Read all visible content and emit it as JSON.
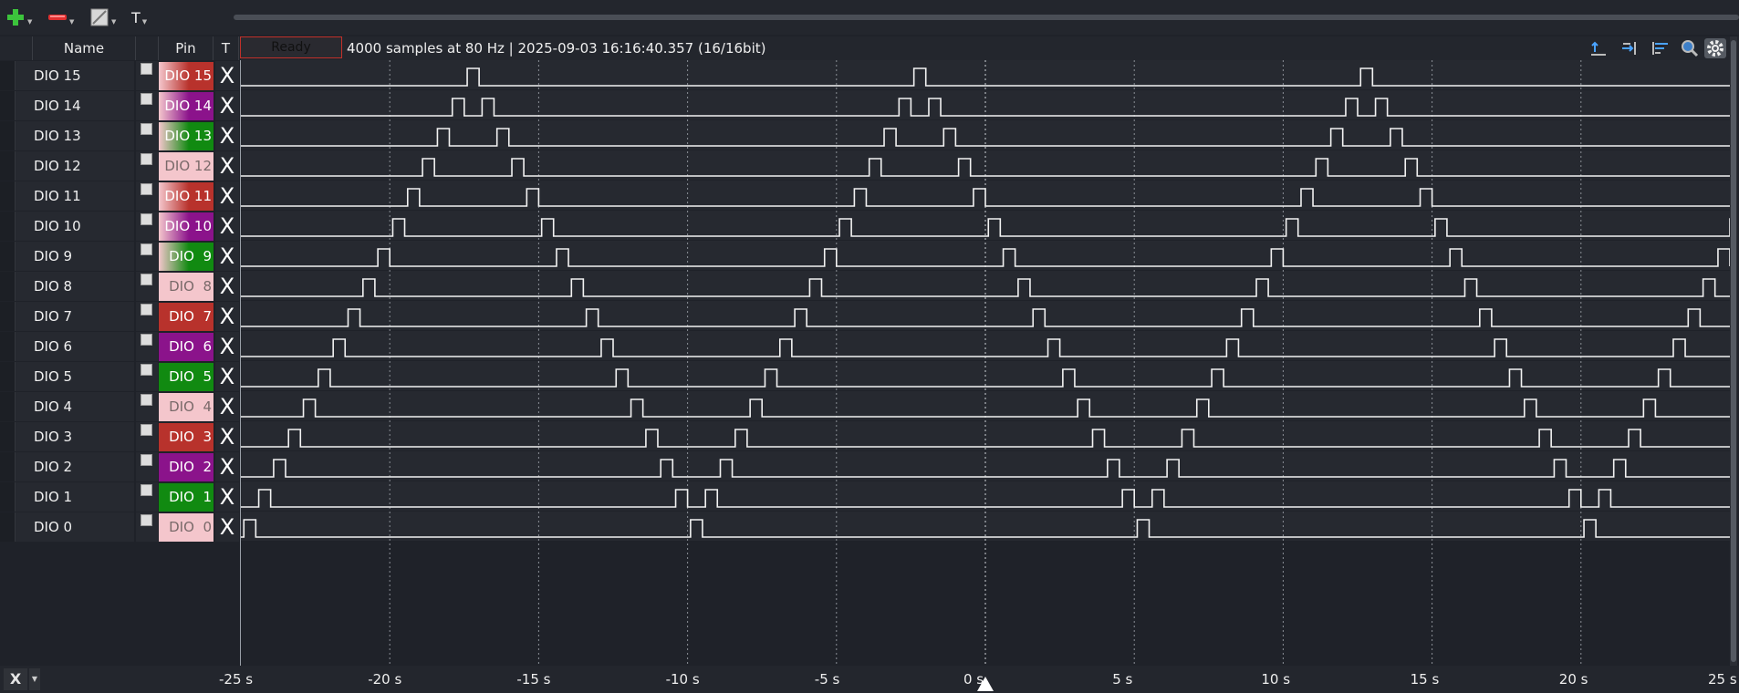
{
  "toolbar": {
    "buttons": [
      {
        "name": "add-channel-button",
        "icon": "plus-icon"
      },
      {
        "name": "remove-channel-button",
        "icon": "minus-icon"
      },
      {
        "name": "edit-channel-button",
        "icon": "edit-icon"
      },
      {
        "name": "text-tool-button",
        "icon": "text-icon",
        "label": "T"
      }
    ]
  },
  "header": {
    "name_col": "Name",
    "pin_col": "Pin",
    "trigger_col": "T",
    "status": "Ready",
    "capture_info": "4000 samples at 80 Hz | 2025-09-03 16:16:40.357 (16/16bit)"
  },
  "channels": [
    {
      "name": "DIO 15",
      "pin": "DIO 15",
      "color": "#b8322c",
      "gradient": true
    },
    {
      "name": "DIO 14",
      "pin": "DIO 14",
      "color": "#8b138b",
      "gradient": true
    },
    {
      "name": "DIO 13",
      "pin": "DIO 13",
      "color": "#118a11",
      "gradient": true
    },
    {
      "name": "DIO 12",
      "pin": "DIO 12",
      "color": "#f4c6cc",
      "gradient": false
    },
    {
      "name": "DIO 11",
      "pin": "DIO 11",
      "color": "#b8322c",
      "gradient": true
    },
    {
      "name": "DIO 10",
      "pin": "DIO 10",
      "color": "#8b138b",
      "gradient": true
    },
    {
      "name": "DIO 9",
      "pin": "DIO  9",
      "color": "#118a11",
      "gradient": true
    },
    {
      "name": "DIO 8",
      "pin": "DIO  8",
      "color": "#f4c6cc",
      "gradient": false
    },
    {
      "name": "DIO 7",
      "pin": "DIO  7",
      "color": "#b8322c",
      "gradient": false
    },
    {
      "name": "DIO 6",
      "pin": "DIO  6",
      "color": "#8b138b",
      "gradient": false
    },
    {
      "name": "DIO 5",
      "pin": "DIO  5",
      "color": "#118a11",
      "gradient": false
    },
    {
      "name": "DIO 4",
      "pin": "DIO  4",
      "color": "#f4c6cc",
      "gradient": false
    },
    {
      "name": "DIO 3",
      "pin": "DIO  3",
      "color": "#b8322c",
      "gradient": false
    },
    {
      "name": "DIO 2",
      "pin": "DIO  2",
      "color": "#8b138b",
      "gradient": false
    },
    {
      "name": "DIO 1",
      "pin": "DIO  1",
      "color": "#118a11",
      "gradient": false
    },
    {
      "name": "DIO 0",
      "pin": "DIO  0",
      "color": "#f4c6cc",
      "gradient": false
    }
  ],
  "trigger_symbol": "X",
  "waveforms": {
    "comment_units": "pulse start/end times in seconds",
    "t_min": -25,
    "t_max": 25,
    "pulses": [
      [
        [
          -17.4,
          -17.0
        ],
        [
          -2.4,
          -2.0
        ],
        [
          12.6,
          13.0
        ]
      ],
      [
        [
          -17.9,
          -17.5
        ],
        [
          -16.9,
          -16.5
        ],
        [
          -2.9,
          -2.5
        ],
        [
          -1.9,
          -1.5
        ],
        [
          12.1,
          12.5
        ],
        [
          13.1,
          13.5
        ]
      ],
      [
        [
          -18.4,
          -18.0
        ],
        [
          -16.4,
          -16.0
        ],
        [
          -3.4,
          -3.0
        ],
        [
          -1.4,
          -1.0
        ],
        [
          11.6,
          12.0
        ],
        [
          13.6,
          14.0
        ]
      ],
      [
        [
          -18.9,
          -18.5
        ],
        [
          -15.9,
          -15.5
        ],
        [
          -3.9,
          -3.5
        ],
        [
          -0.9,
          -0.5
        ],
        [
          11.1,
          11.5
        ],
        [
          14.1,
          14.5
        ]
      ],
      [
        [
          -19.4,
          -19.0
        ],
        [
          -15.4,
          -15.0
        ],
        [
          -4.4,
          -4.0
        ],
        [
          -0.4,
          0.0
        ],
        [
          10.6,
          11.0
        ],
        [
          14.6,
          15.0
        ]
      ],
      [
        [
          -19.9,
          -19.5
        ],
        [
          -14.9,
          -14.5
        ],
        [
          -4.9,
          -4.5
        ],
        [
          0.1,
          0.5
        ],
        [
          10.1,
          10.5
        ],
        [
          15.1,
          15.5
        ],
        [
          25.1,
          25.5
        ]
      ],
      [
        [
          -20.4,
          -20.0
        ],
        [
          -14.4,
          -14.0
        ],
        [
          -5.4,
          -5.0
        ],
        [
          0.6,
          1.0
        ],
        [
          9.6,
          10.0
        ],
        [
          15.6,
          16.0
        ],
        [
          24.6,
          25.0
        ]
      ],
      [
        [
          -20.9,
          -20.5
        ],
        [
          -13.9,
          -13.5
        ],
        [
          -5.9,
          -5.5
        ],
        [
          1.1,
          1.5
        ],
        [
          9.1,
          9.5
        ],
        [
          16.1,
          16.5
        ],
        [
          24.1,
          24.5
        ]
      ],
      [
        [
          -21.4,
          -21.0
        ],
        [
          -13.4,
          -13.0
        ],
        [
          -6.4,
          -6.0
        ],
        [
          1.6,
          2.0
        ],
        [
          8.6,
          9.0
        ],
        [
          16.6,
          17.0
        ],
        [
          23.6,
          24.0
        ]
      ],
      [
        [
          -21.9,
          -21.5
        ],
        [
          -12.9,
          -12.5
        ],
        [
          -6.9,
          -6.5
        ],
        [
          2.1,
          2.5
        ],
        [
          8.1,
          8.5
        ],
        [
          17.1,
          17.5
        ],
        [
          23.1,
          23.5
        ]
      ],
      [
        [
          -22.4,
          -22.0
        ],
        [
          -12.4,
          -12.0
        ],
        [
          -7.4,
          -7.0
        ],
        [
          2.6,
          3.0
        ],
        [
          7.6,
          8.0
        ],
        [
          17.6,
          18.0
        ],
        [
          22.6,
          23.0
        ]
      ],
      [
        [
          -22.9,
          -22.5
        ],
        [
          -11.9,
          -11.5
        ],
        [
          -7.9,
          -7.5
        ],
        [
          3.1,
          3.5
        ],
        [
          7.1,
          7.5
        ],
        [
          18.1,
          18.5
        ],
        [
          22.1,
          22.5
        ]
      ],
      [
        [
          -23.4,
          -23.0
        ],
        [
          -11.4,
          -11.0
        ],
        [
          -8.4,
          -8.0
        ],
        [
          3.6,
          4.0
        ],
        [
          6.6,
          7.0
        ],
        [
          18.6,
          19.0
        ],
        [
          21.6,
          22.0
        ]
      ],
      [
        [
          -23.9,
          -23.5
        ],
        [
          -10.9,
          -10.5
        ],
        [
          -8.9,
          -8.5
        ],
        [
          4.1,
          4.5
        ],
        [
          6.1,
          6.5
        ],
        [
          19.1,
          19.5
        ],
        [
          21.1,
          21.5
        ]
      ],
      [
        [
          -24.4,
          -24.0
        ],
        [
          -10.4,
          -10.0
        ],
        [
          -9.4,
          -9.0
        ],
        [
          4.6,
          5.0
        ],
        [
          5.6,
          6.0
        ],
        [
          19.6,
          20.0
        ],
        [
          20.6,
          21.0
        ]
      ],
      [
        [
          -24.9,
          -24.5
        ],
        [
          -9.9,
          -9.5
        ],
        [
          5.1,
          5.5
        ],
        [
          20.1,
          20.5
        ]
      ]
    ]
  },
  "time_axis": {
    "ticks": [
      {
        "t": -25,
        "label": "-25 s"
      },
      {
        "t": -20,
        "label": "-20 s"
      },
      {
        "t": -15,
        "label": "-15 s"
      },
      {
        "t": -10,
        "label": "-10 s"
      },
      {
        "t": -5,
        "label": "-5 s"
      },
      {
        "t": 0,
        "label": "0 s"
      },
      {
        "t": 5,
        "label": "5 s"
      },
      {
        "t": 10,
        "label": "10 s"
      },
      {
        "t": 15,
        "label": "15 s"
      },
      {
        "t": 20,
        "label": "20 s"
      },
      {
        "t": 25,
        "label": "25 s"
      }
    ],
    "trigger_time": 0
  },
  "bottom": {
    "close_label": "X"
  }
}
